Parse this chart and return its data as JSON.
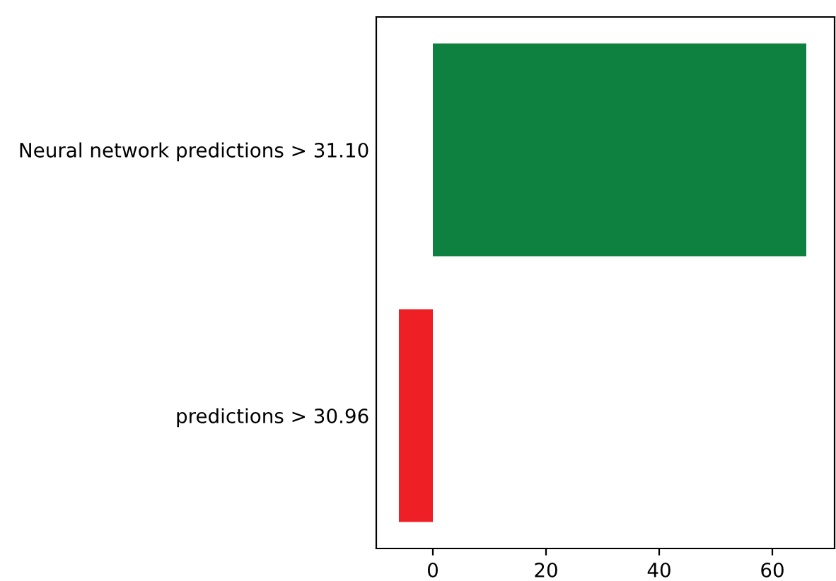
{
  "chart_data": {
    "type": "bar",
    "orientation": "horizontal",
    "categories": [
      "Neural network predictions > 31.10",
      "predictions > 30.96"
    ],
    "values": [
      66,
      -6
    ],
    "colors": [
      "#0e8040",
      "#ee1f25"
    ],
    "xlim": [
      -10,
      71
    ],
    "xticks": [
      0,
      20,
      40,
      60
    ],
    "grid": false
  }
}
